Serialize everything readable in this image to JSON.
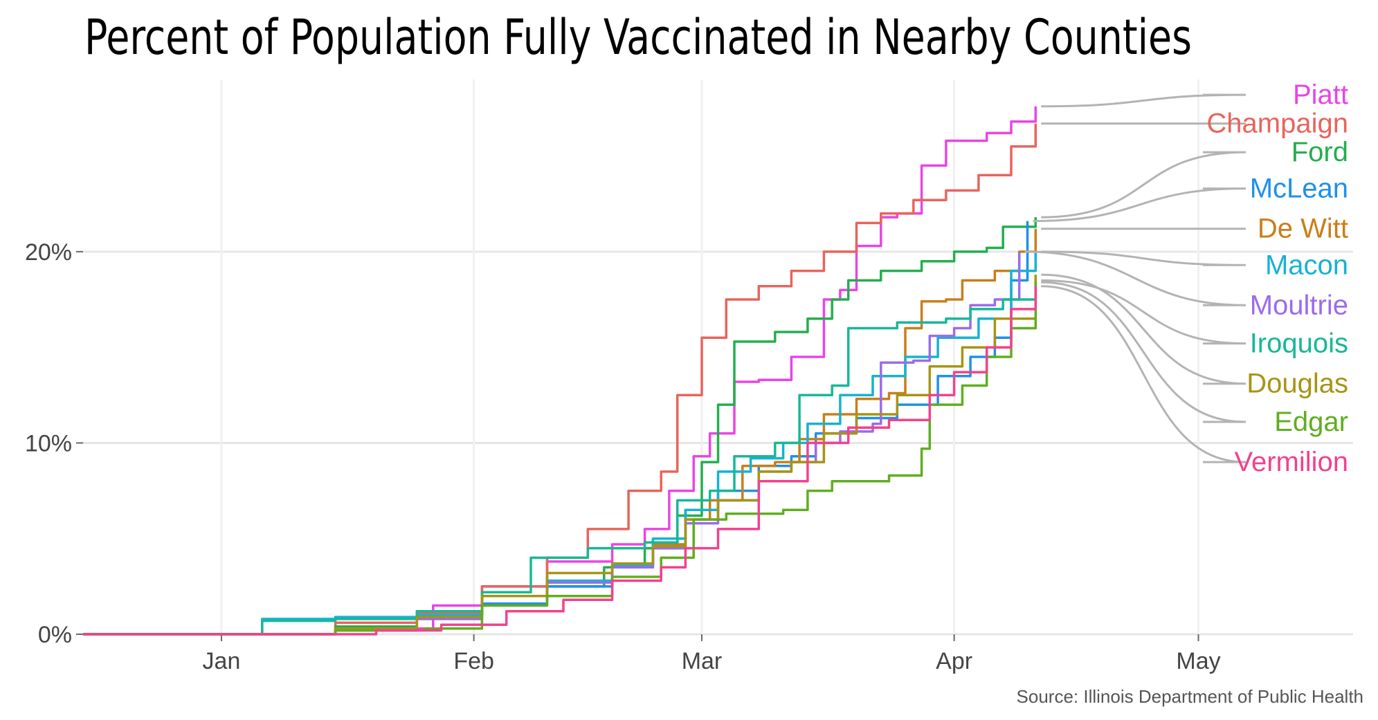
{
  "chart_data": {
    "type": "line",
    "title": "Percent of Population Fully Vaccinated in Nearby Counties",
    "source": "Source: Illinois Department of Public Health",
    "xlabel": "",
    "ylabel": "",
    "x_axis": {
      "min": "2020-12-15",
      "max": "2021-05-20",
      "ticks": [
        {
          "label": "Jan",
          "date": "2021-01-01"
        },
        {
          "label": "Feb",
          "date": "2021-02-01"
        },
        {
          "label": "Mar",
          "date": "2021-03-01"
        },
        {
          "label": "Apr",
          "date": "2021-04-01"
        },
        {
          "label": "May",
          "date": "2021-05-01"
        }
      ]
    },
    "y_axis": {
      "min": 0,
      "max": 0.29,
      "ticks": [
        {
          "label": "0%",
          "value": 0
        },
        {
          "label": "10%",
          "value": 0.1
        },
        {
          "label": "20%",
          "value": 0.2
        }
      ]
    },
    "grid": true,
    "legend": "direct labels at right end of lines",
    "series": [
      {
        "name": "Piatt",
        "color": "#E944E6",
        "label_value": 0.282,
        "points": [
          [
            "2020-12-15",
            0
          ],
          [
            "2021-01-05",
            0
          ],
          [
            "2021-01-15",
            0.003
          ],
          [
            "2021-01-27",
            0.015
          ],
          [
            "2021-02-02",
            0.025
          ],
          [
            "2021-02-10",
            0.038
          ],
          [
            "2021-02-18",
            0.047
          ],
          [
            "2021-02-22",
            0.055
          ],
          [
            "2021-02-25",
            0.075
          ],
          [
            "2021-02-28",
            0.093
          ],
          [
            "2021-03-02",
            0.105
          ],
          [
            "2021-03-05",
            0.132
          ],
          [
            "2021-03-08",
            0.133
          ],
          [
            "2021-03-12",
            0.145
          ],
          [
            "2021-03-16",
            0.175
          ],
          [
            "2021-03-18",
            0.18
          ],
          [
            "2021-03-20",
            0.203
          ],
          [
            "2021-03-23",
            0.218
          ],
          [
            "2021-03-25",
            0.22
          ],
          [
            "2021-03-28",
            0.245
          ],
          [
            "2021-03-31",
            0.258
          ],
          [
            "2021-04-05",
            0.262
          ],
          [
            "2021-04-08",
            0.268
          ],
          [
            "2021-04-11",
            0.276
          ]
        ]
      },
      {
        "name": "Champaign",
        "color": "#E8645C",
        "label_value": 0.267,
        "points": [
          [
            "2020-12-15",
            0
          ],
          [
            "2021-01-05",
            0
          ],
          [
            "2021-01-15",
            0.006
          ],
          [
            "2021-01-25",
            0.011
          ],
          [
            "2021-02-02",
            0.025
          ],
          [
            "2021-02-10",
            0.04
          ],
          [
            "2021-02-15",
            0.055
          ],
          [
            "2021-02-20",
            0.075
          ],
          [
            "2021-02-24",
            0.085
          ],
          [
            "2021-02-26",
            0.125
          ],
          [
            "2021-03-01",
            0.155
          ],
          [
            "2021-03-04",
            0.175
          ],
          [
            "2021-03-08",
            0.182
          ],
          [
            "2021-03-12",
            0.19
          ],
          [
            "2021-03-16",
            0.2
          ],
          [
            "2021-03-20",
            0.215
          ],
          [
            "2021-03-23",
            0.22
          ],
          [
            "2021-03-27",
            0.227
          ],
          [
            "2021-03-31",
            0.232
          ],
          [
            "2021-04-04",
            0.24
          ],
          [
            "2021-04-08",
            0.255
          ],
          [
            "2021-04-11",
            0.267
          ]
        ]
      },
      {
        "name": "Ford",
        "color": "#24AE4E",
        "label_value": 0.252,
        "points": [
          [
            "2020-12-15",
            0
          ],
          [
            "2021-01-05",
            0
          ],
          [
            "2021-01-15",
            0.004
          ],
          [
            "2021-01-25",
            0.012
          ],
          [
            "2021-02-02",
            0.02
          ],
          [
            "2021-02-10",
            0.025
          ],
          [
            "2021-02-17",
            0.035
          ],
          [
            "2021-02-22",
            0.045
          ],
          [
            "2021-02-26",
            0.062
          ],
          [
            "2021-03-01",
            0.09
          ],
          [
            "2021-03-03",
            0.12
          ],
          [
            "2021-03-05",
            0.153
          ],
          [
            "2021-03-10",
            0.158
          ],
          [
            "2021-03-14",
            0.165
          ],
          [
            "2021-03-17",
            0.175
          ],
          [
            "2021-03-19",
            0.185
          ],
          [
            "2021-03-23",
            0.19
          ],
          [
            "2021-03-28",
            0.195
          ],
          [
            "2021-04-01",
            0.2
          ],
          [
            "2021-04-05",
            0.202
          ],
          [
            "2021-04-07",
            0.213
          ],
          [
            "2021-04-11",
            0.218
          ]
        ]
      },
      {
        "name": "McLean",
        "color": "#1E90E8",
        "label_value": 0.233,
        "points": [
          [
            "2020-12-15",
            0
          ],
          [
            "2021-01-05",
            0
          ],
          [
            "2021-01-15",
            0.002
          ],
          [
            "2021-01-25",
            0.008
          ],
          [
            "2021-02-02",
            0.016
          ],
          [
            "2021-02-10",
            0.025
          ],
          [
            "2021-02-18",
            0.035
          ],
          [
            "2021-02-23",
            0.045
          ],
          [
            "2021-02-27",
            0.065
          ],
          [
            "2021-03-03",
            0.075
          ],
          [
            "2021-03-08",
            0.088
          ],
          [
            "2021-03-12",
            0.093
          ],
          [
            "2021-03-15",
            0.105
          ],
          [
            "2021-03-20",
            0.113
          ],
          [
            "2021-03-25",
            0.12
          ],
          [
            "2021-03-30",
            0.135
          ],
          [
            "2021-04-03",
            0.145
          ],
          [
            "2021-04-06",
            0.155
          ],
          [
            "2021-04-08",
            0.185
          ],
          [
            "2021-04-10",
            0.216
          ]
        ]
      },
      {
        "name": "De Witt",
        "color": "#C97E1A",
        "label_value": 0.212,
        "points": [
          [
            "2020-12-15",
            0
          ],
          [
            "2021-01-05",
            0
          ],
          [
            "2021-01-15",
            0.003
          ],
          [
            "2021-01-25",
            0.01
          ],
          [
            "2021-02-02",
            0.02
          ],
          [
            "2021-02-10",
            0.028
          ],
          [
            "2021-02-18",
            0.037
          ],
          [
            "2021-02-23",
            0.047
          ],
          [
            "2021-02-27",
            0.06
          ],
          [
            "2021-03-02",
            0.07
          ],
          [
            "2021-03-06",
            0.088
          ],
          [
            "2021-03-10",
            0.09
          ],
          [
            "2021-03-13",
            0.102
          ],
          [
            "2021-03-16",
            0.115
          ],
          [
            "2021-03-20",
            0.123
          ],
          [
            "2021-03-24",
            0.126
          ],
          [
            "2021-03-26",
            0.16
          ],
          [
            "2021-03-28",
            0.174
          ],
          [
            "2021-03-31",
            0.175
          ],
          [
            "2021-04-02",
            0.185
          ],
          [
            "2021-04-06",
            0.19
          ],
          [
            "2021-04-09",
            0.2
          ],
          [
            "2021-04-11",
            0.212
          ]
        ]
      },
      {
        "name": "Macon",
        "color": "#16B2D2",
        "label_value": 0.193,
        "points": [
          [
            "2020-12-15",
            0
          ],
          [
            "2021-01-05",
            0
          ],
          [
            "2021-01-06",
            0.008
          ],
          [
            "2021-01-15",
            0.009
          ],
          [
            "2021-01-25",
            0.01
          ],
          [
            "2021-02-02",
            0.02
          ],
          [
            "2021-02-10",
            0.028
          ],
          [
            "2021-02-18",
            0.036
          ],
          [
            "2021-02-23",
            0.05
          ],
          [
            "2021-02-27",
            0.065
          ],
          [
            "2021-03-03",
            0.085
          ],
          [
            "2021-03-07",
            0.092
          ],
          [
            "2021-03-11",
            0.1
          ],
          [
            "2021-03-14",
            0.11
          ],
          [
            "2021-03-18",
            0.125
          ],
          [
            "2021-03-22",
            0.135
          ],
          [
            "2021-03-26",
            0.145
          ],
          [
            "2021-03-30",
            0.155
          ],
          [
            "2021-04-04",
            0.165
          ],
          [
            "2021-04-08",
            0.19
          ],
          [
            "2021-04-11",
            0.2
          ]
        ]
      },
      {
        "name": "Moultrie",
        "color": "#9B6BEA",
        "label_value": 0.172,
        "points": [
          [
            "2020-12-15",
            0
          ],
          [
            "2021-01-05",
            0
          ],
          [
            "2021-01-15",
            0.003
          ],
          [
            "2021-01-25",
            0.008
          ],
          [
            "2021-02-02",
            0.02
          ],
          [
            "2021-02-10",
            0.027
          ],
          [
            "2021-02-18",
            0.035
          ],
          [
            "2021-02-23",
            0.045
          ],
          [
            "2021-02-27",
            0.058
          ],
          [
            "2021-03-03",
            0.07
          ],
          [
            "2021-03-08",
            0.085
          ],
          [
            "2021-03-12",
            0.09
          ],
          [
            "2021-03-15",
            0.1
          ],
          [
            "2021-03-18",
            0.106
          ],
          [
            "2021-03-22",
            0.11
          ],
          [
            "2021-03-23",
            0.142
          ],
          [
            "2021-03-27",
            0.143
          ],
          [
            "2021-03-29",
            0.156
          ],
          [
            "2021-04-01",
            0.16
          ],
          [
            "2021-04-03",
            0.172
          ],
          [
            "2021-04-06",
            0.175
          ],
          [
            "2021-04-09",
            0.2
          ]
        ]
      },
      {
        "name": "Iroquois",
        "color": "#18B797",
        "label_value": 0.152,
        "points": [
          [
            "2020-12-15",
            0
          ],
          [
            "2021-01-05",
            0
          ],
          [
            "2021-01-06",
            0.007
          ],
          [
            "2021-01-15",
            0.008
          ],
          [
            "2021-01-25",
            0.012
          ],
          [
            "2021-02-02",
            0.022
          ],
          [
            "2021-02-08",
            0.04
          ],
          [
            "2021-02-15",
            0.045
          ],
          [
            "2021-02-22",
            0.048
          ],
          [
            "2021-02-26",
            0.07
          ],
          [
            "2021-03-02",
            0.075
          ],
          [
            "2021-03-05",
            0.093
          ],
          [
            "2021-03-10",
            0.1
          ],
          [
            "2021-03-13",
            0.125
          ],
          [
            "2021-03-17",
            0.13
          ],
          [
            "2021-03-19",
            0.16
          ],
          [
            "2021-03-25",
            0.163
          ],
          [
            "2021-03-31",
            0.165
          ],
          [
            "2021-04-03",
            0.17
          ],
          [
            "2021-04-07",
            0.175
          ],
          [
            "2021-04-11",
            0.185
          ]
        ]
      },
      {
        "name": "Douglas",
        "color": "#A79415",
        "label_value": 0.131,
        "points": [
          [
            "2020-12-15",
            0
          ],
          [
            "2021-01-05",
            0
          ],
          [
            "2021-01-15",
            0.003
          ],
          [
            "2021-01-25",
            0.009
          ],
          [
            "2021-02-02",
            0.02
          ],
          [
            "2021-02-10",
            0.032
          ],
          [
            "2021-02-18",
            0.037
          ],
          [
            "2021-02-23",
            0.046
          ],
          [
            "2021-02-27",
            0.06
          ],
          [
            "2021-03-03",
            0.07
          ],
          [
            "2021-03-08",
            0.085
          ],
          [
            "2021-03-12",
            0.09
          ],
          [
            "2021-03-16",
            0.105
          ],
          [
            "2021-03-20",
            0.115
          ],
          [
            "2021-03-25",
            0.125
          ],
          [
            "2021-03-29",
            0.14
          ],
          [
            "2021-04-02",
            0.15
          ],
          [
            "2021-04-06",
            0.165
          ],
          [
            "2021-04-11",
            0.188
          ]
        ]
      },
      {
        "name": "Edgar",
        "color": "#5FAE1F",
        "label_value": 0.111,
        "points": [
          [
            "2020-12-15",
            0
          ],
          [
            "2021-01-05",
            0
          ],
          [
            "2021-01-15",
            0.002
          ],
          [
            "2021-01-26",
            0.003
          ],
          [
            "2021-02-02",
            0.015
          ],
          [
            "2021-02-10",
            0.02
          ],
          [
            "2021-02-18",
            0.03
          ],
          [
            "2021-02-24",
            0.04
          ],
          [
            "2021-02-28",
            0.06
          ],
          [
            "2021-03-04",
            0.063
          ],
          [
            "2021-03-11",
            0.065
          ],
          [
            "2021-03-14",
            0.075
          ],
          [
            "2021-03-17",
            0.08
          ],
          [
            "2021-03-24",
            0.083
          ],
          [
            "2021-03-28",
            0.097
          ],
          [
            "2021-03-29",
            0.12
          ],
          [
            "2021-04-02",
            0.13
          ],
          [
            "2021-04-05",
            0.145
          ],
          [
            "2021-04-08",
            0.16
          ],
          [
            "2021-04-11",
            0.184
          ]
        ]
      },
      {
        "name": "Vermilion",
        "color": "#F2418E",
        "label_value": 0.09,
        "points": [
          [
            "2020-12-15",
            0
          ],
          [
            "2021-01-05",
            0
          ],
          [
            "2021-01-20",
            0.002
          ],
          [
            "2021-01-28",
            0.005
          ],
          [
            "2021-02-05",
            0.012
          ],
          [
            "2021-02-12",
            0.018
          ],
          [
            "2021-02-18",
            0.028
          ],
          [
            "2021-02-24",
            0.035
          ],
          [
            "2021-02-27",
            0.045
          ],
          [
            "2021-03-03",
            0.055
          ],
          [
            "2021-03-08",
            0.08
          ],
          [
            "2021-03-14",
            0.1
          ],
          [
            "2021-03-19",
            0.108
          ],
          [
            "2021-03-24",
            0.112
          ],
          [
            "2021-03-29",
            0.125
          ],
          [
            "2021-04-01",
            0.137
          ],
          [
            "2021-04-05",
            0.15
          ],
          [
            "2021-04-08",
            0.17
          ],
          [
            "2021-04-11",
            0.182
          ]
        ]
      }
    ]
  }
}
